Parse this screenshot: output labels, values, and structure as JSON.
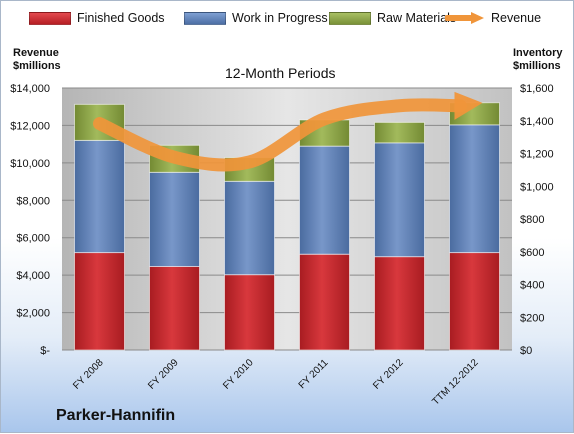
{
  "chart_data": {
    "type": "bar",
    "stacked": true,
    "company": "Parker-Hannifin",
    "subtitle": "12-Month Periods",
    "left_axis_title": [
      "Revenue",
      "$millions"
    ],
    "right_axis_title": [
      "Inventory",
      "$millions"
    ],
    "categories": [
      "FY 2008",
      "FY 2009",
      "FY 2010",
      "FY 2011",
      "FY 2012",
      "TTM 12-2012"
    ],
    "left_ticks": [
      "$-",
      "$2,000",
      "$4,000",
      "$6,000",
      "$8,000",
      "$10,000",
      "$12,000",
      "$14,000"
    ],
    "right_ticks": [
      "$0",
      "$200",
      "$400",
      "$600",
      "$800",
      "$1,000",
      "$1,200",
      "$1,400",
      "$1,600"
    ],
    "left_ylim": [
      0,
      14000
    ],
    "right_ylim": [
      0,
      1600
    ],
    "series": [
      {
        "name": "Finished Goods",
        "axis": "right",
        "color": "#c0292e",
        "values": [
          595,
          510,
          460,
          585,
          570,
          595
        ]
      },
      {
        "name": "Work in Progress",
        "axis": "right",
        "color": "#5b7fb5",
        "values": [
          685,
          575,
          570,
          660,
          695,
          780
        ]
      },
      {
        "name": "Raw Materials",
        "axis": "right",
        "color": "#8fa64a",
        "values": [
          220,
          165,
          145,
          160,
          125,
          135
        ]
      },
      {
        "name": "Revenue",
        "axis": "left",
        "type": "line",
        "color": "#f0953a",
        "values": [
          12100,
          10300,
          10050,
          12350,
          13050,
          13150
        ]
      }
    ],
    "grid": true,
    "legend_position": "top"
  }
}
